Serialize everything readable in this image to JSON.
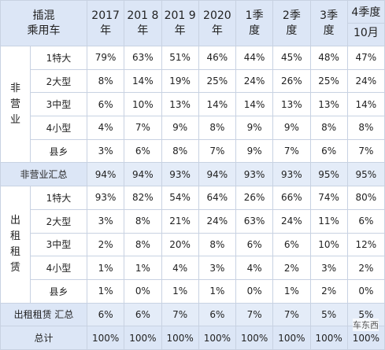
{
  "header": {
    "corner": [
      "插混",
      "乘用车"
    ],
    "columns": [
      [
        "2017",
        "年"
      ],
      [
        "201 8",
        "年"
      ],
      [
        "201 9",
        "年"
      ],
      [
        "2020",
        "年"
      ],
      [
        "1季",
        "度"
      ],
      [
        "2季",
        "度"
      ],
      [
        "3季",
        "度"
      ],
      [
        "4季度",
        "10月"
      ]
    ]
  },
  "groups": [
    {
      "label": "非营业",
      "rows": [
        {
          "label": "1特大",
          "cells": [
            "79%",
            "63%",
            "51%",
            "46%",
            "44%",
            "45%",
            "48%",
            "47%"
          ]
        },
        {
          "label": "2大型",
          "cells": [
            "8%",
            "14%",
            "19%",
            "25%",
            "24%",
            "26%",
            "25%",
            "24%"
          ]
        },
        {
          "label": "3中型",
          "cells": [
            "6%",
            "10%",
            "13%",
            "14%",
            "14%",
            "13%",
            "13%",
            "14%"
          ]
        },
        {
          "label": "4小型",
          "cells": [
            "4%",
            "7%",
            "9%",
            "8%",
            "9%",
            "9%",
            "8%",
            "8%"
          ]
        },
        {
          "label": "县乡",
          "cells": [
            "3%",
            "6%",
            "8%",
            "7%",
            "9%",
            "7%",
            "6%",
            "7%"
          ]
        }
      ],
      "summary": {
        "label": "非营业汇总",
        "cells": [
          "94%",
          "94%",
          "93%",
          "94%",
          "93%",
          "93%",
          "95%",
          "95%"
        ]
      }
    },
    {
      "label": "出租租赁",
      "rows": [
        {
          "label": "1特大",
          "cells": [
            "93%",
            "82%",
            "54%",
            "64%",
            "26%",
            "66%",
            "74%",
            "80%"
          ]
        },
        {
          "label": "2大型",
          "cells": [
            "3%",
            "8%",
            "21%",
            "24%",
            "63%",
            "24%",
            "11%",
            "6%"
          ]
        },
        {
          "label": "3中型",
          "cells": [
            "2%",
            "8%",
            "20%",
            "8%",
            "6%",
            "6%",
            "10%",
            "12%"
          ]
        },
        {
          "label": "4小型",
          "cells": [
            "1%",
            "1%",
            "4%",
            "3%",
            "4%",
            "2%",
            "3%",
            "2%"
          ]
        },
        {
          "label": "县乡",
          "cells": [
            "1%",
            "0%",
            "1%",
            "1%",
            "0%",
            "1%",
            "2%",
            "0%"
          ]
        }
      ],
      "summary": {
        "label": "出租租赁 汇总",
        "cells": [
          "6%",
          "6%",
          "7%",
          "6%",
          "7%",
          "7%",
          "5%",
          "5%"
        ]
      }
    }
  ],
  "total": {
    "label": "总计",
    "cells": [
      "100%",
      "100%",
      "100%",
      "100%",
      "100%",
      "100%",
      "100%",
      "100%"
    ]
  },
  "watermark": "车东西"
}
